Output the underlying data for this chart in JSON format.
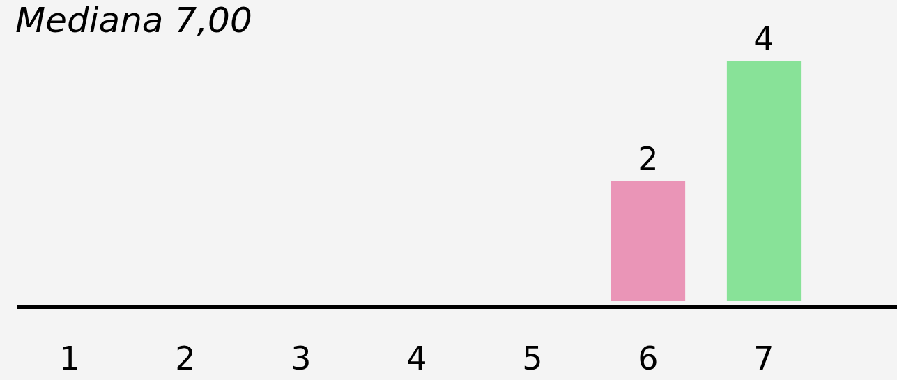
{
  "chart_data": {
    "type": "bar",
    "title": "Mediana 7,00",
    "categories": [
      "1",
      "2",
      "3",
      "4",
      "5",
      "6",
      "7"
    ],
    "values": [
      0,
      0,
      0,
      0,
      0,
      2,
      4
    ],
    "colors": [
      "#ea95b7",
      "#ea95b7",
      "#ea95b7",
      "#ea95b7",
      "#ea95b7",
      "#ea95b7",
      "#88e298"
    ],
    "value_labels": [
      null,
      null,
      null,
      null,
      null,
      "2",
      "4"
    ]
  }
}
